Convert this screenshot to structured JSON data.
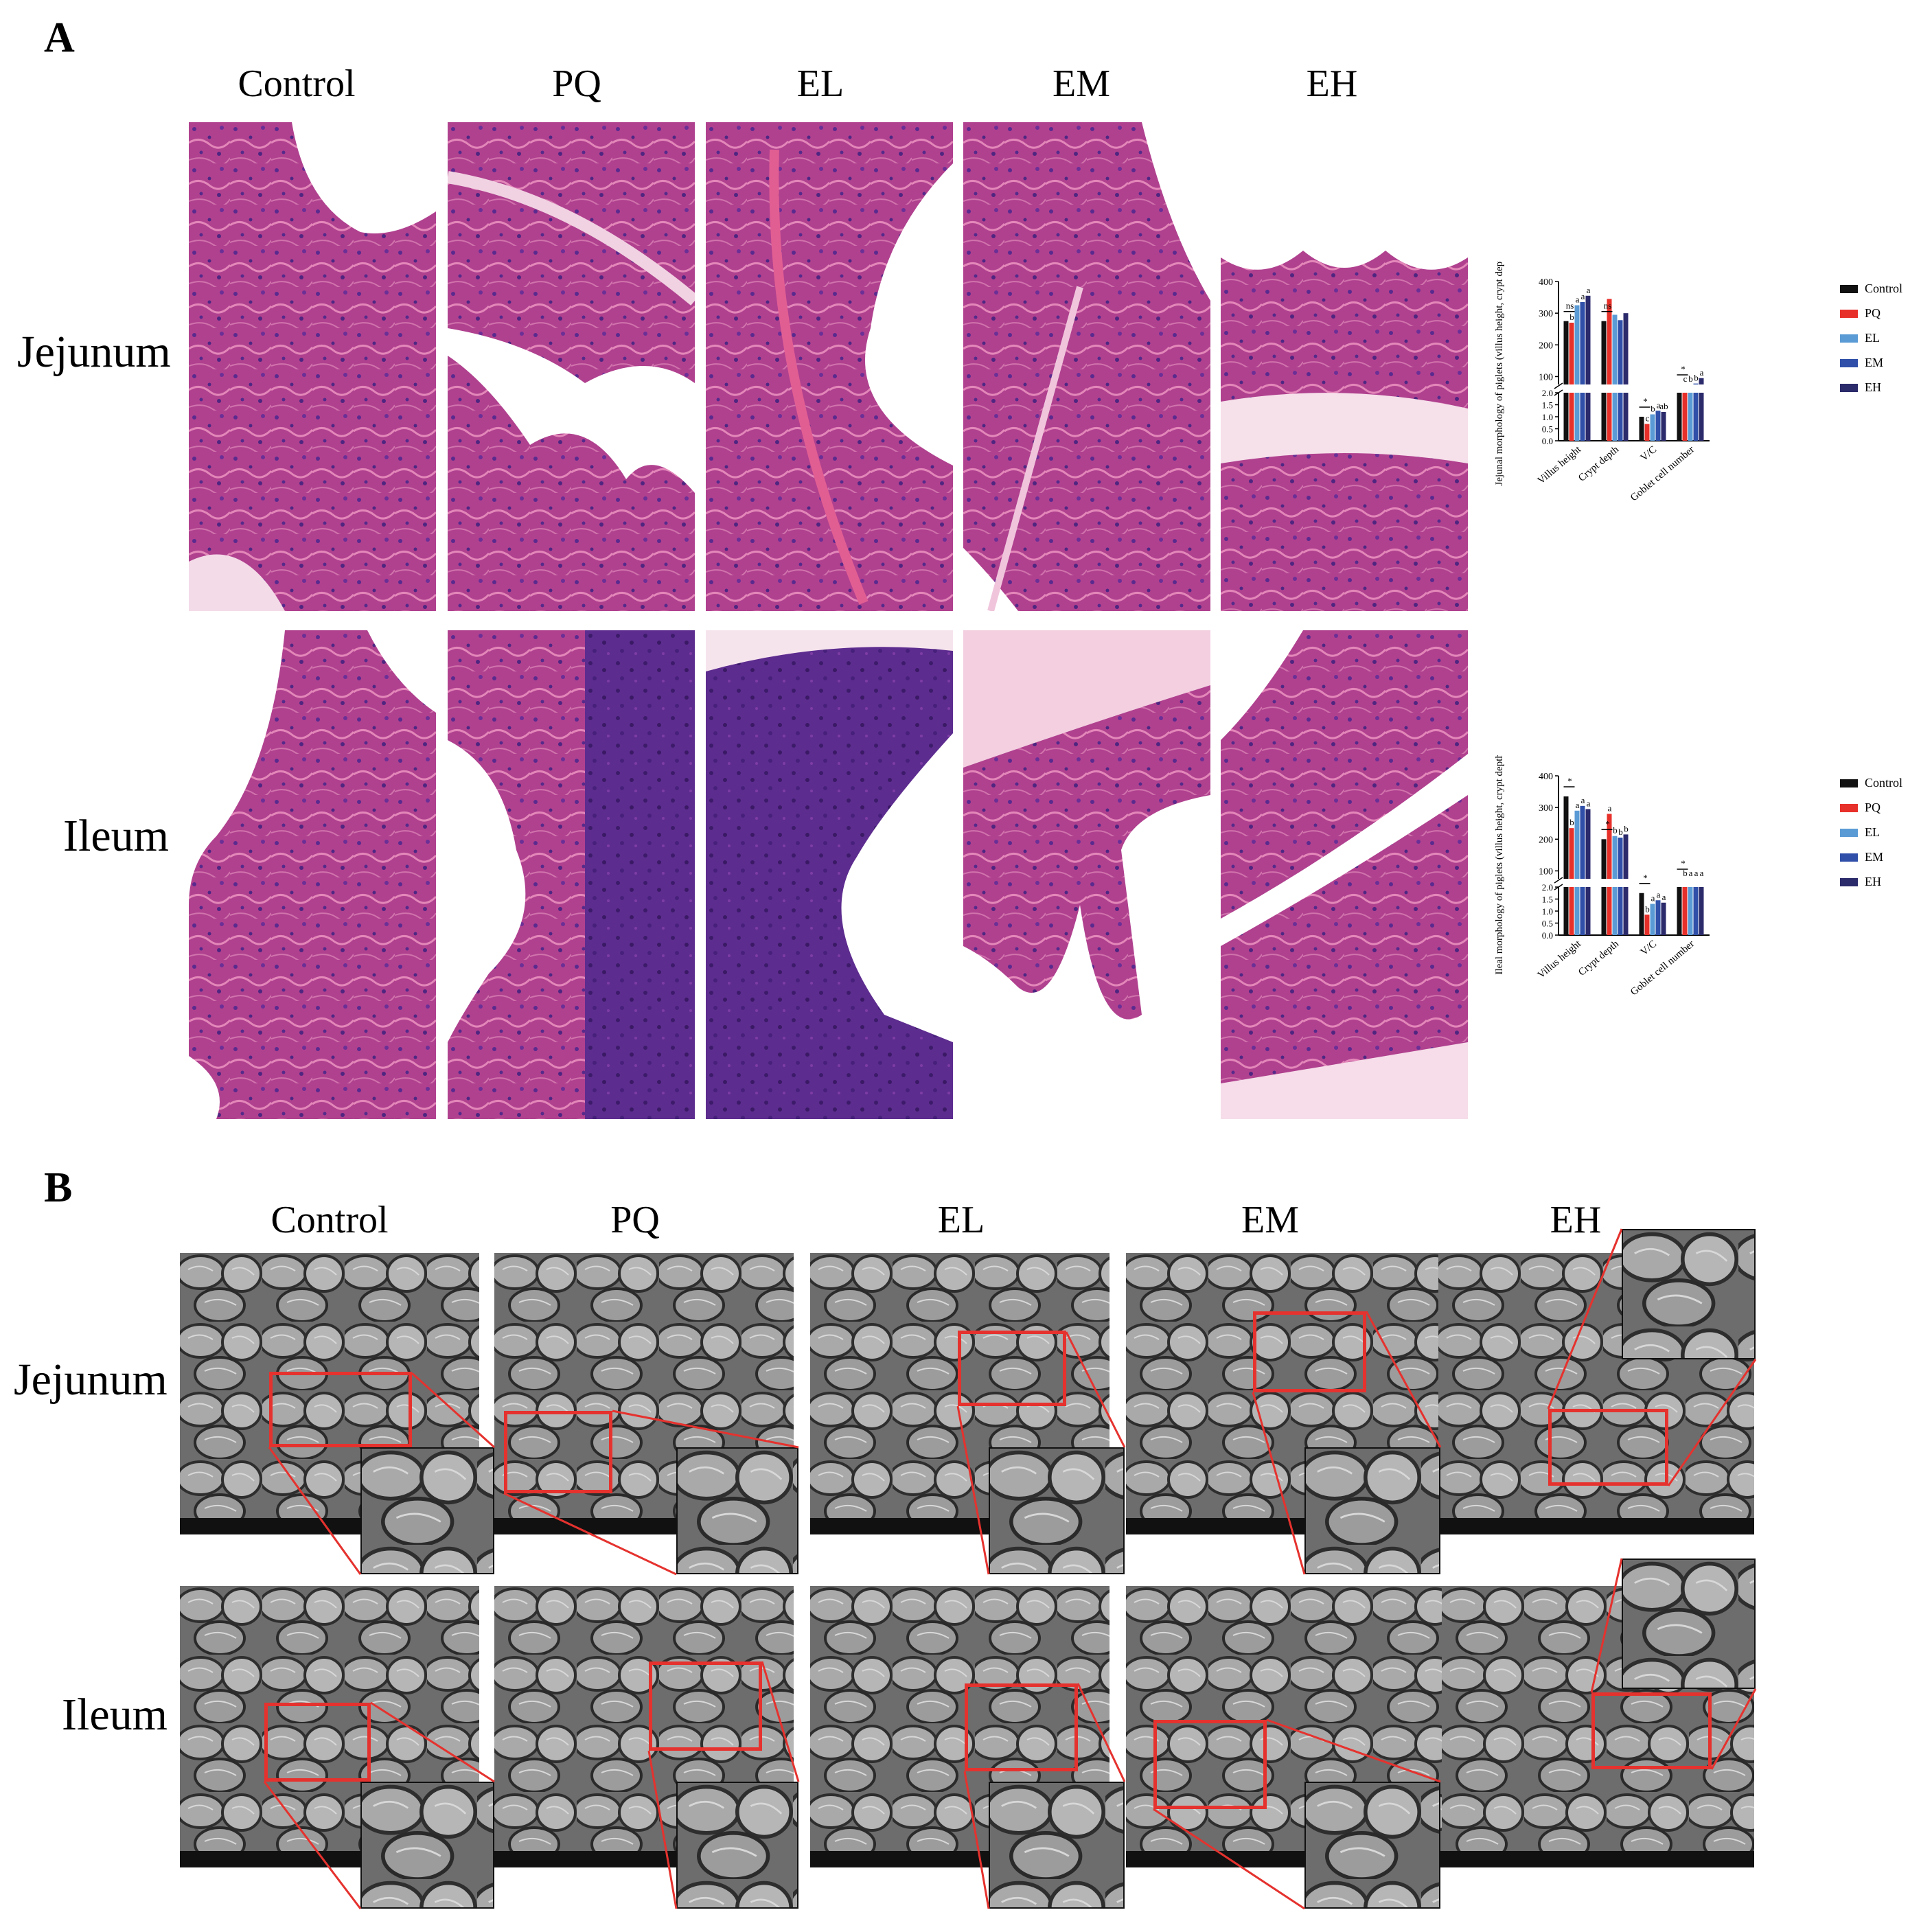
{
  "panel_a": {
    "letter": "A",
    "columns": [
      "Control",
      "PQ",
      "EL",
      "EM",
      "EH"
    ],
    "rows": [
      "Jejunum",
      "Ileum"
    ]
  },
  "panel_b": {
    "letter": "B",
    "columns": [
      "Control",
      "PQ",
      "EL",
      "EM",
      "EH"
    ],
    "rows": [
      "Jejunum",
      "Ileum"
    ]
  },
  "colors": {
    "Control": "#111111",
    "PQ": "#e8302a",
    "EL": "#5b9bd5",
    "EM": "#2f4fa8",
    "EH": "#2b2a6b",
    "roi": "#e5322e"
  },
  "chart_data": [
    {
      "type": "bar",
      "ylabel": "Jejunal morphology of piglets (villus height, crypt depthμm)",
      "categories": [
        "Villus height",
        "Crypt depth",
        "V/C",
        "Goblet cell number"
      ],
      "legend": [
        "Control",
        "PQ",
        "EL",
        "EM",
        "EH"
      ],
      "legend_position": "right",
      "y_axis": {
        "upper_ticks": [
          100,
          200,
          300,
          400
        ],
        "lower_ticks": [
          "0.0",
          "0.5",
          "1.0",
          "1.5",
          "2.0"
        ],
        "broken": true
      },
      "series": [
        {
          "name": "Control",
          "values": [
            275,
            275,
            1.0,
            55
          ]
        },
        {
          "name": "PQ",
          "values": [
            270,
            345,
            0.7,
            45
          ]
        },
        {
          "name": "EL",
          "values": [
            325,
            295,
            1.1,
            75
          ]
        },
        {
          "name": "EM",
          "values": [
            335,
            278,
            1.25,
            78
          ]
        },
        {
          "name": "EH",
          "values": [
            355,
            300,
            1.2,
            95
          ]
        }
      ],
      "annotations": [
        {
          "group": "Villus height",
          "labels": [
            "ns",
            "b",
            "a",
            "a",
            "a"
          ]
        },
        {
          "group": "Crypt depth",
          "labels": [
            "ns"
          ]
        },
        {
          "group": "V/C",
          "labels": [
            "*",
            "c",
            "b",
            "a",
            "ab"
          ]
        },
        {
          "group": "Goblet cell number",
          "labels": [
            "*",
            "c",
            "b",
            "b",
            "a"
          ]
        }
      ]
    },
    {
      "type": "bar",
      "ylabel": "Ileal morphology of piglets (villus height, crypt depthμm)",
      "categories": [
        "Villus height",
        "Crypt depth",
        "V/C",
        "Goblet cell number"
      ],
      "legend": [
        "Control",
        "PQ",
        "EL",
        "EM",
        "EH"
      ],
      "legend_position": "right",
      "y_axis": {
        "upper_ticks": [
          100,
          200,
          300,
          400
        ],
        "lower_ticks": [
          "0.0",
          "0.5",
          "1.0",
          "1.5",
          "2.0"
        ],
        "broken": true
      },
      "series": [
        {
          "name": "Control",
          "values": [
            335,
            200,
            1.75,
            65
          ]
        },
        {
          "name": "PQ",
          "values": [
            235,
            280,
            0.85,
            45
          ]
        },
        {
          "name": "EL",
          "values": [
            290,
            210,
            1.3,
            60
          ]
        },
        {
          "name": "EM",
          "values": [
            305,
            205,
            1.45,
            62
          ]
        },
        {
          "name": "EH",
          "values": [
            295,
            215,
            1.35,
            60
          ]
        }
      ],
      "annotations": [
        {
          "group": "Villus height",
          "labels": [
            "*",
            "b",
            "a",
            "a",
            "a"
          ]
        },
        {
          "group": "Crypt depth",
          "labels": [
            "*",
            "a",
            "b",
            "b",
            "b"
          ]
        },
        {
          "group": "V/C",
          "labels": [
            "*",
            "b",
            "a",
            "a",
            "a"
          ]
        },
        {
          "group": "Goblet cell number",
          "labels": [
            "*",
            "b",
            "a",
            "a",
            "a"
          ]
        }
      ]
    }
  ]
}
